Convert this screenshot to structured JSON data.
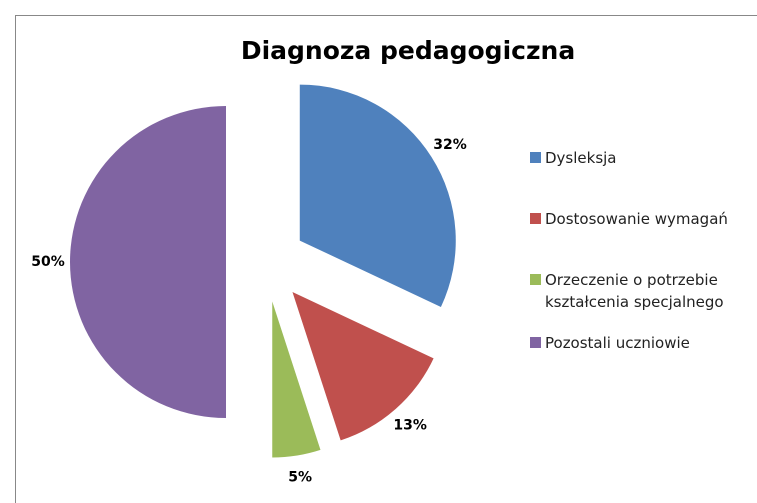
{
  "chart_data": {
    "type": "pie",
    "title": "Diagnoza pedagogiczna",
    "categories": [
      "Dysleksja",
      "Dostosowanie wymagań",
      "Orzeczenie o potrzebie kształcenia specjalnego",
      "Pozostali uczniowie"
    ],
    "values": [
      32,
      13,
      5,
      50
    ],
    "value_labels": [
      "32%",
      "13%",
      "5%",
      "50%"
    ],
    "colors": [
      "#4f81bd",
      "#c0504d",
      "#9bbb59",
      "#8064a2"
    ],
    "legend": "right"
  }
}
